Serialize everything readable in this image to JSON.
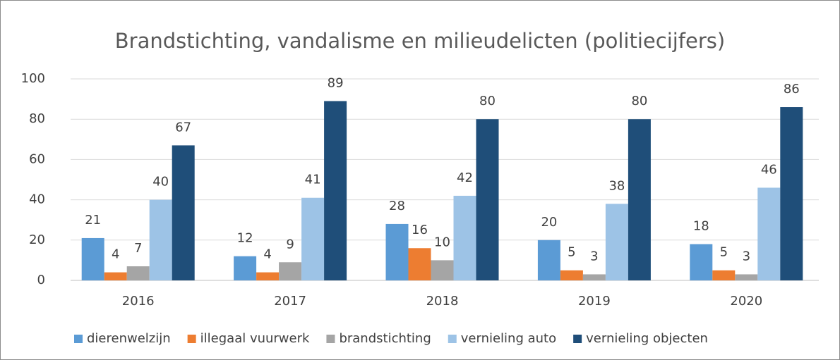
{
  "chart_data": {
    "type": "bar",
    "title": "Brandstichting, vandalisme en milieudelicten (politiecijfers)",
    "categories": [
      "2016",
      "2017",
      "2018",
      "2019",
      "2020"
    ],
    "series": [
      {
        "name": "dierenwelzijn",
        "color": "#5b9bd5",
        "values": [
          21,
          12,
          28,
          20,
          18
        ]
      },
      {
        "name": "illegaal vuurwerk",
        "color": "#ed7d31",
        "values": [
          4,
          4,
          16,
          5,
          5
        ]
      },
      {
        "name": "brandstichting",
        "color": "#a5a5a5",
        "values": [
          7,
          9,
          10,
          3,
          3
        ]
      },
      {
        "name": "vernieling auto",
        "color": "#9dc3e6",
        "values": [
          40,
          41,
          42,
          38,
          46
        ]
      },
      {
        "name": "vernieling objecten",
        "color": "#1f4e79",
        "values": [
          67,
          89,
          80,
          80,
          86
        ]
      }
    ],
    "ylim": [
      0,
      100
    ],
    "yticks": [
      0,
      20,
      40,
      60,
      80,
      100
    ],
    "grid": true,
    "legend": "bottom"
  }
}
